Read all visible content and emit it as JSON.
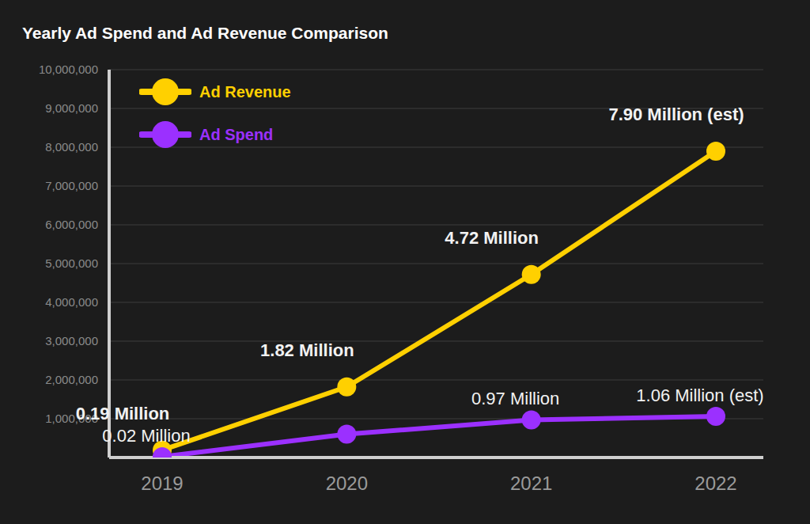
{
  "chart_data": {
    "type": "line",
    "title": "Yearly Ad Spend and Ad Revenue Comparison",
    "categories": [
      "2019",
      "2020",
      "2021",
      "2022"
    ],
    "series": [
      {
        "name": "Ad Revenue",
        "color": "#ffd000",
        "marker": "circle",
        "values": [
          190000,
          1820000,
          4720000,
          7900000
        ],
        "value_labels": [
          "0.19 Million",
          "1.82 Million",
          "4.72 Million",
          "7.90 Million (est)"
        ]
      },
      {
        "name": "Ad Spend",
        "color": "#9b30ff",
        "marker": "circle",
        "values": [
          20000,
          600000,
          970000,
          1060000
        ],
        "value_labels": [
          "0.02 Million",
          null,
          "0.97 Million",
          "1.06 Million (est)"
        ]
      }
    ],
    "ylim": [
      0,
      10000000
    ],
    "yticks": [
      {
        "value": 1000000,
        "label": "1,000,000"
      },
      {
        "value": 2000000,
        "label": "2,000,000"
      },
      {
        "value": 3000000,
        "label": "3,000,000"
      },
      {
        "value": 4000000,
        "label": "4,000,000"
      },
      {
        "value": 5000000,
        "label": "5,000,000"
      },
      {
        "value": 6000000,
        "label": "6,000,000"
      },
      {
        "value": 7000000,
        "label": "7,000,000"
      },
      {
        "value": 8000000,
        "label": "8,000,000"
      },
      {
        "value": 9000000,
        "label": "9,000,000"
      },
      {
        "value": 10000000,
        "label": "10,000,000"
      }
    ],
    "grid": true,
    "legend": "upper left",
    "data_labels": true
  }
}
